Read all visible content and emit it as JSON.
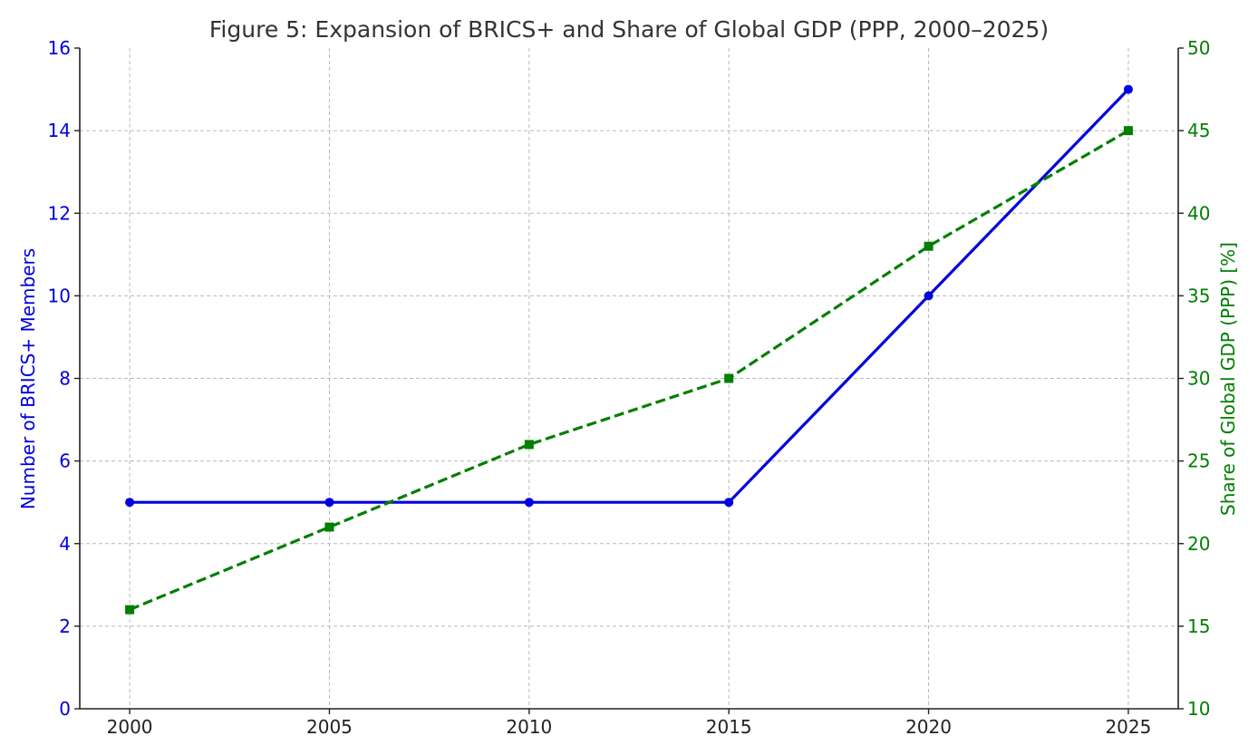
{
  "chart_data": {
    "type": "line",
    "title": "Figure 5: Expansion of BRICS+ and Share of Global GDP (PPP, 2000–2025)",
    "x": [
      2000,
      2005,
      2010,
      2015,
      2020,
      2025
    ],
    "xlabel": "",
    "x_ticks": [
      "2000",
      "2005",
      "2010",
      "2015",
      "2020",
      "2025"
    ],
    "xlim": [
      1998.75,
      2026.25
    ],
    "ylabel_left": "Number of BRICS+ Members",
    "ylim_left": [
      0,
      16
    ],
    "y_ticks_left": [
      "0",
      "2",
      "4",
      "6",
      "8",
      "10",
      "12",
      "14",
      "16"
    ],
    "ylabel_right": "Share of Global GDP (PPP) [%]",
    "ylim_right": [
      10,
      50
    ],
    "y_ticks_right": [
      "10",
      "15",
      "20",
      "25",
      "30",
      "35",
      "40",
      "45",
      "50"
    ],
    "grid": true,
    "series": [
      {
        "name": "Number of BRICS+ Members",
        "axis": "left",
        "values": [
          5,
          5,
          5,
          5,
          10,
          15
        ],
        "color": "#0000dd",
        "style": "solid",
        "marker": "circle"
      },
      {
        "name": "Share of Global GDP (PPP) [%]",
        "axis": "right",
        "values": [
          16,
          21,
          26,
          30,
          38,
          45
        ],
        "color": "#007f00",
        "style": "dashed",
        "marker": "square"
      }
    ]
  }
}
